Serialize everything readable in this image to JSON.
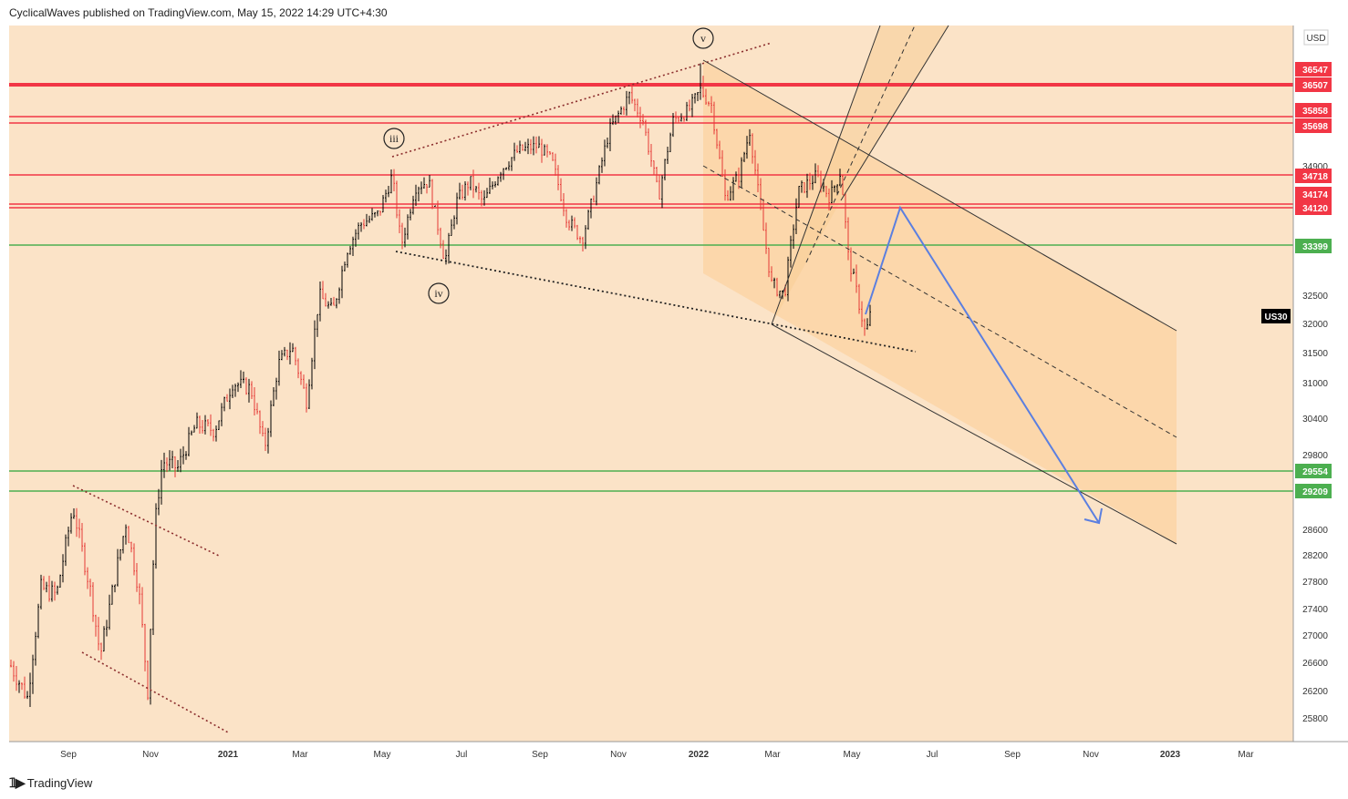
{
  "header": {
    "publisher_line": "CyclicalWaves published on TradingView.com, May 15, 2022 14:29 UTC+4:30"
  },
  "footer": {
    "brand": "TradingView"
  },
  "chart_data": {
    "type": "candlestick",
    "symbol": "US30",
    "currency": "USD",
    "background": "#fbe3c7",
    "channel_fill": "#fbd5a6",
    "x_ticks": [
      "Sep",
      "Nov",
      "2021",
      "Mar",
      "May",
      "Jul",
      "Sep",
      "Nov",
      "2022",
      "Mar",
      "May",
      "Jul",
      "Sep",
      "Nov",
      "2023",
      "Mar"
    ],
    "y_ticks": [
      25800,
      26200,
      26600,
      27000,
      27400,
      27800,
      28200,
      28600,
      29800,
      30400,
      31000,
      31500,
      32000,
      32500,
      34900
    ],
    "ylim": [
      25500,
      37800
    ],
    "resistance_levels": [
      {
        "value": 36547,
        "label": "36547",
        "color": "#f23645"
      },
      {
        "value": 36507,
        "label": "36507",
        "color": "#f23645"
      },
      {
        "value": 35858,
        "label": "35858",
        "color": "#f23645"
      },
      {
        "value": 35698,
        "label": "35698",
        "color": "#f23645"
      },
      {
        "value": 34718,
        "label": "34718",
        "color": "#f23645"
      },
      {
        "value": 34174,
        "label": "34174",
        "color": "#f23645"
      },
      {
        "value": 34120,
        "label": "34120",
        "color": "#f23645"
      }
    ],
    "support_levels": [
      {
        "value": 33399,
        "label": "33399",
        "color": "#4caf50"
      },
      {
        "value": 29554,
        "label": "29554",
        "color": "#4caf50"
      },
      {
        "value": 29209,
        "label": "29209",
        "color": "#4caf50"
      }
    ],
    "wave_labels": [
      "iii",
      "iv",
      "v"
    ],
    "symbol_badge": "US30",
    "projection_color": "#5b7fe0",
    "up_color": "#000000",
    "down_color": "#e53935"
  }
}
